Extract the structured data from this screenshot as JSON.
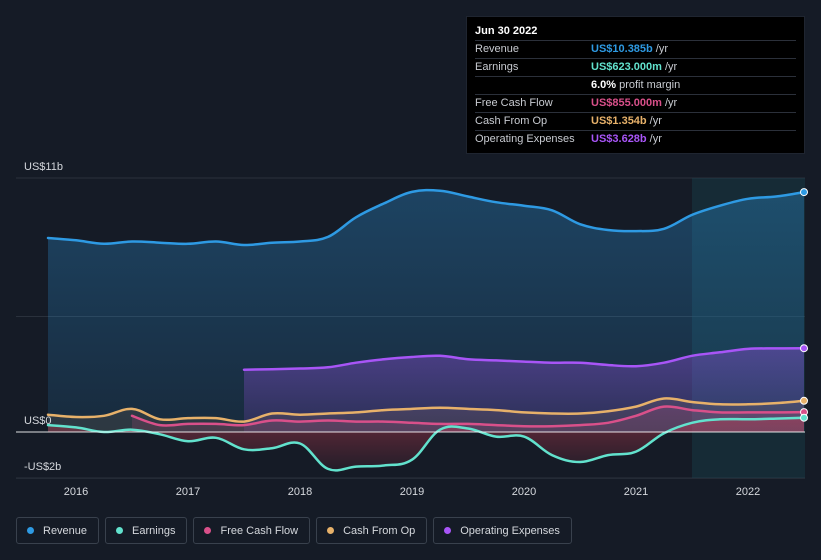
{
  "tooltip": {
    "date": "Jun 30 2022",
    "rows": [
      {
        "label": "Revenue",
        "value": "US$10.385b",
        "unit": "/yr",
        "color": "#2e9ae3"
      },
      {
        "label": "Earnings",
        "value": "US$623.000m",
        "unit": "/yr",
        "color": "#62e2cd"
      },
      {
        "label": "",
        "value": "6.0%",
        "unit": "profit margin",
        "color": "#ffffff"
      },
      {
        "label": "Free Cash Flow",
        "value": "US$855.000m",
        "unit": "/yr",
        "color": "#d9508a"
      },
      {
        "label": "Cash From Op",
        "value": "US$1.354b",
        "unit": "/yr",
        "color": "#e7b16a"
      },
      {
        "label": "Operating Expenses",
        "value": "US$3.628b",
        "unit": "/yr",
        "color": "#a855f7"
      }
    ]
  },
  "legend": [
    {
      "label": "Revenue",
      "color": "#2e9ae3"
    },
    {
      "label": "Earnings",
      "color": "#62e2cd"
    },
    {
      "label": "Free Cash Flow",
      "color": "#d9508a"
    },
    {
      "label": "Cash From Op",
      "color": "#e7b16a"
    },
    {
      "label": "Operating Expenses",
      "color": "#a855f7"
    }
  ],
  "chart_data": {
    "type": "line",
    "ylim": [
      -2,
      11
    ],
    "y_tick_labels": [
      "US$11b",
      "US$0",
      "-US$2b"
    ],
    "y_tick_values": [
      11,
      0,
      -2
    ],
    "x_tick_labels": [
      "2016",
      "2017",
      "2018",
      "2019",
      "2020",
      "2021",
      "2022"
    ],
    "x_tick_values": [
      2016,
      2017,
      2018,
      2019,
      2020,
      2021,
      2022
    ],
    "highlight_start": 2021.5,
    "series": [
      {
        "name": "Revenue",
        "color": "#2e9ae3",
        "fill": true,
        "x": [
          2015.75,
          2016.0,
          2016.25,
          2016.5,
          2016.75,
          2017.0,
          2017.25,
          2017.5,
          2017.75,
          2018.0,
          2018.25,
          2018.5,
          2018.75,
          2019.0,
          2019.25,
          2019.5,
          2019.75,
          2020.0,
          2020.25,
          2020.5,
          2020.75,
          2021.0,
          2021.25,
          2021.5,
          2021.75,
          2022.0,
          2022.25,
          2022.5
        ],
        "y": [
          8.4,
          8.3,
          8.15,
          8.25,
          8.2,
          8.15,
          8.25,
          8.1,
          8.2,
          8.25,
          8.45,
          9.3,
          9.9,
          10.4,
          10.45,
          10.2,
          9.95,
          9.8,
          9.6,
          9.0,
          8.75,
          8.7,
          8.8,
          9.4,
          9.8,
          10.1,
          10.2,
          10.39
        ]
      },
      {
        "name": "Operating Expenses",
        "color": "#a855f7",
        "fill": true,
        "x": [
          2017.5,
          2017.75,
          2018.0,
          2018.25,
          2018.5,
          2018.75,
          2019.0,
          2019.25,
          2019.5,
          2019.75,
          2020.0,
          2020.25,
          2020.5,
          2020.75,
          2021.0,
          2021.25,
          2021.5,
          2021.75,
          2022.0,
          2022.25,
          2022.5
        ],
        "y": [
          2.7,
          2.72,
          2.75,
          2.8,
          3.0,
          3.15,
          3.25,
          3.3,
          3.15,
          3.1,
          3.05,
          3.0,
          3.0,
          2.9,
          2.85,
          3.0,
          3.3,
          3.45,
          3.6,
          3.62,
          3.63
        ]
      },
      {
        "name": "Cash From Op",
        "color": "#e7b16a",
        "fill": true,
        "x": [
          2015.75,
          2016.0,
          2016.25,
          2016.5,
          2016.75,
          2017.0,
          2017.25,
          2017.5,
          2017.75,
          2018.0,
          2018.25,
          2018.5,
          2018.75,
          2019.0,
          2019.25,
          2019.5,
          2019.75,
          2020.0,
          2020.25,
          2020.5,
          2020.75,
          2021.0,
          2021.25,
          2021.5,
          2021.75,
          2022.0,
          2022.25,
          2022.5
        ],
        "y": [
          0.75,
          0.65,
          0.7,
          1.0,
          0.55,
          0.6,
          0.6,
          0.45,
          0.8,
          0.75,
          0.8,
          0.85,
          0.95,
          1.0,
          1.05,
          1.0,
          0.95,
          0.85,
          0.8,
          0.8,
          0.9,
          1.1,
          1.45,
          1.3,
          1.2,
          1.2,
          1.25,
          1.35
        ]
      },
      {
        "name": "Free Cash Flow",
        "color": "#d9508a",
        "fill": true,
        "x": [
          2016.5,
          2016.75,
          2017.0,
          2017.25,
          2017.5,
          2017.75,
          2018.0,
          2018.25,
          2018.5,
          2018.75,
          2019.0,
          2019.25,
          2019.5,
          2019.75,
          2020.0,
          2020.25,
          2020.5,
          2020.75,
          2021.0,
          2021.25,
          2021.5,
          2021.75,
          2022.0,
          2022.25,
          2022.5
        ],
        "y": [
          0.7,
          0.3,
          0.35,
          0.35,
          0.3,
          0.5,
          0.45,
          0.5,
          0.45,
          0.45,
          0.4,
          0.35,
          0.35,
          0.3,
          0.25,
          0.25,
          0.3,
          0.4,
          0.7,
          1.1,
          0.95,
          0.85,
          0.85,
          0.85,
          0.86
        ]
      },
      {
        "name": "Earnings",
        "color": "#62e2cd",
        "fill": true,
        "x": [
          2015.75,
          2016.0,
          2016.25,
          2016.5,
          2016.75,
          2017.0,
          2017.25,
          2017.5,
          2017.75,
          2018.0,
          2018.25,
          2018.5,
          2018.75,
          2019.0,
          2019.25,
          2019.5,
          2019.75,
          2020.0,
          2020.25,
          2020.5,
          2020.75,
          2021.0,
          2021.25,
          2021.5,
          2021.75,
          2022.0,
          2022.25,
          2022.5
        ],
        "y": [
          0.3,
          0.2,
          0.0,
          0.1,
          -0.1,
          -0.4,
          -0.25,
          -0.75,
          -0.7,
          -0.5,
          -1.6,
          -1.5,
          -1.45,
          -1.2,
          0.1,
          0.15,
          -0.2,
          -0.2,
          -1.0,
          -1.3,
          -1.0,
          -0.85,
          -0.05,
          0.4,
          0.55,
          0.55,
          0.58,
          0.62
        ]
      }
    ]
  }
}
